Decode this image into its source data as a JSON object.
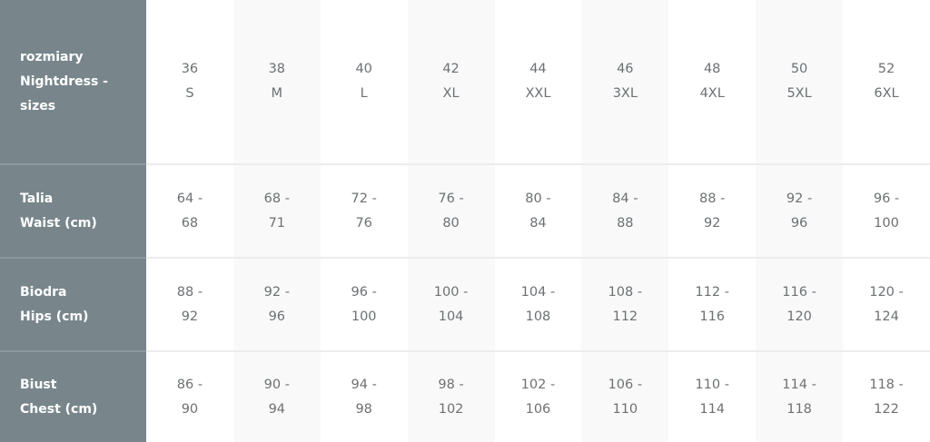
{
  "table": {
    "header_label": [
      "rozmiary",
      "Nightdress -",
      "sizes"
    ],
    "sizes": [
      {
        "number": "36",
        "letter": "S"
      },
      {
        "number": "38",
        "letter": "M"
      },
      {
        "number": "40",
        "letter": "L"
      },
      {
        "number": "42",
        "letter": "XL"
      },
      {
        "number": "44",
        "letter": "XXL"
      },
      {
        "number": "46",
        "letter": "3XL"
      },
      {
        "number": "48",
        "letter": "4XL"
      },
      {
        "number": "50",
        "letter": "5XL"
      },
      {
        "number": "52",
        "letter": "6XL"
      }
    ],
    "rows": [
      {
        "label": [
          "Talia",
          "Waist (cm)"
        ],
        "values": [
          [
            "64 -",
            "68"
          ],
          [
            "68 -",
            "71"
          ],
          [
            "72 -",
            "76"
          ],
          [
            "76 -",
            "80"
          ],
          [
            "80 -",
            "84"
          ],
          [
            "84 -",
            "88"
          ],
          [
            "88 -",
            "92"
          ],
          [
            "92 -",
            "96"
          ],
          [
            "96 -",
            "100"
          ]
        ]
      },
      {
        "label": [
          "Biodra",
          "Hips (cm)"
        ],
        "values": [
          [
            "88 -",
            "92"
          ],
          [
            "92 -",
            "96"
          ],
          [
            "96 -",
            "100"
          ],
          [
            "100 -",
            "104"
          ],
          [
            "104 -",
            "108"
          ],
          [
            "108 -",
            "112"
          ],
          [
            "112 -",
            "116"
          ],
          [
            "116 -",
            "120"
          ],
          [
            "120 -",
            "124"
          ]
        ]
      },
      {
        "label": [
          "Biust",
          "Chest (cm)"
        ],
        "values": [
          [
            "86 -",
            "90"
          ],
          [
            "90 -",
            "94"
          ],
          [
            "94 -",
            "98"
          ],
          [
            "98 -",
            "102"
          ],
          [
            "102 -",
            "106"
          ],
          [
            "106 -",
            "110"
          ],
          [
            "110 -",
            "114"
          ],
          [
            "114 -",
            "118"
          ],
          [
            "118 -",
            "122"
          ]
        ]
      }
    ]
  },
  "colors": {
    "row_header_bg": "#78868c",
    "alt_column_bg": "#f9f9f9",
    "text": "#6d7073"
  }
}
